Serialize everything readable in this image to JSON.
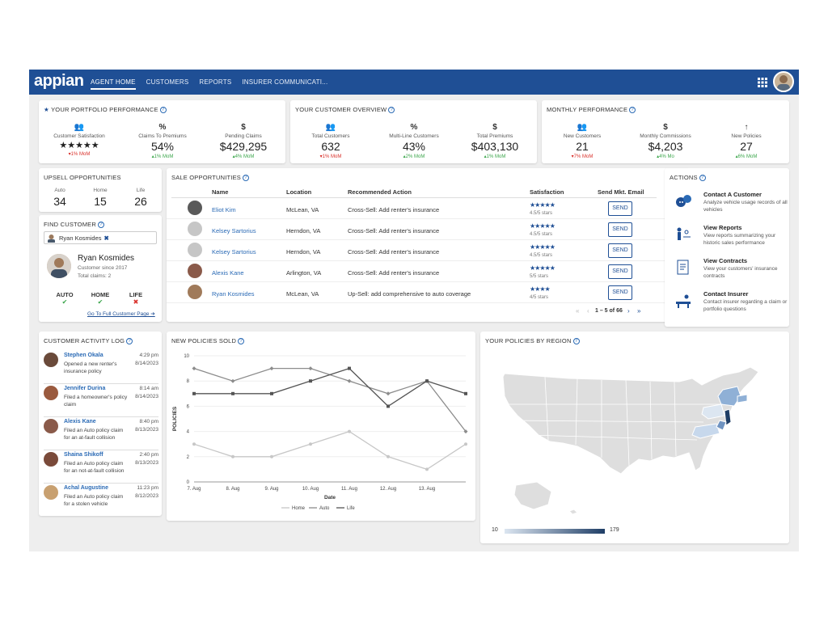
{
  "app": {
    "logo": "appian",
    "nav": [
      "AGENT HOME",
      "CUSTOMERS",
      "REPORTS",
      "INSURER COMMUNICATI..."
    ]
  },
  "portfolio": {
    "title": "YOUR PORTFOLIO PERFORMANCE",
    "stats": [
      {
        "icon": "people-icon",
        "label": "Customer Satisfaction",
        "value": "★★★★★",
        "change": "▾1% MoM",
        "dir": "down"
      },
      {
        "icon": "percent-icon",
        "label": "Claims To Premiums",
        "value": "54%",
        "change": "▴1% MoM",
        "dir": "up"
      },
      {
        "icon": "dollar-icon",
        "label": "Pending Claims",
        "value": "$429,295",
        "change": "▴4% MoM",
        "dir": "up"
      }
    ]
  },
  "overview": {
    "title": "YOUR CUSTOMER OVERVIEW",
    "stats": [
      {
        "label": "Total Customers",
        "value": "632",
        "change": "▾1% MoM",
        "dir": "down"
      },
      {
        "label": "Multi-Line Customers",
        "value": "43%",
        "change": "▴2% MoM",
        "dir": "up"
      },
      {
        "label": "Total Premiums",
        "value": "$403,130",
        "change": "▴1% MoM",
        "dir": "up"
      }
    ]
  },
  "monthly": {
    "title": "MONTHLY PERFORMANCE",
    "stats": [
      {
        "label": "New Customers",
        "value": "21",
        "change": "▾7% MoM",
        "dir": "down"
      },
      {
        "label": "Monthly Commissions",
        "value": "$4,203",
        "change": "▴4% Mo",
        "dir": "up"
      },
      {
        "label": "New Policies",
        "value": "27",
        "change": "▴6% MoM",
        "dir": "up"
      }
    ]
  },
  "upsell": {
    "title": "UPSELL OPPORTUNITIES",
    "items": [
      {
        "label": "Auto",
        "value": "34"
      },
      {
        "label": "Home",
        "value": "15"
      },
      {
        "label": "Life",
        "value": "26"
      }
    ]
  },
  "find": {
    "title": "FIND CUSTOMER",
    "chip": "Ryan Kosmides",
    "name": "Ryan Kosmides",
    "since": "Customer since 2017",
    "claims": "Total claims: 2",
    "lines": [
      {
        "label": "AUTO",
        "mark": "✔",
        "status": "yes"
      },
      {
        "label": "HOME",
        "mark": "✔",
        "status": "yes"
      },
      {
        "label": "LIFE",
        "mark": "✖",
        "status": "no"
      }
    ],
    "link": "Go To Full Customer Page ➔"
  },
  "sales": {
    "title": "SALE OPPORTUNITIES",
    "headers": [
      "Name",
      "Location",
      "Recommended Action",
      "Satisfaction",
      "Send Mkt. Email"
    ],
    "rows": [
      {
        "name": "Eliot Kim",
        "location": "McLean, VA",
        "action": "Cross-Sell: Add renter's insurance",
        "stars": "★★★★★",
        "score": "4.5/5 stars",
        "send": "SEND"
      },
      {
        "name": "Kelsey Sartorius",
        "location": "Herndon, VA",
        "action": "Cross-Sell: Add renter's insurance",
        "stars": "★★★★★",
        "score": "4.5/5 stars",
        "send": "SEND"
      },
      {
        "name": "Kelsey Sartorius",
        "location": "Herndon, VA",
        "action": "Cross-Sell: Add renter's insurance",
        "stars": "★★★★★",
        "score": "4.5/5 stars",
        "send": "SEND"
      },
      {
        "name": "Alexis Kane",
        "location": "Arlington, VA",
        "action": "Cross-Sell: Add renter's insurance",
        "stars": "★★★★★",
        "score": "5/5 stars",
        "send": "SEND"
      },
      {
        "name": "Ryan Kosmides",
        "location": "McLean, VA",
        "action": "Up-Sell: add comprehensive to auto coverage",
        "stars": "★★★★",
        "score": "4/5 stars",
        "send": "SEND"
      }
    ],
    "pager": "1 – 5 of 66"
  },
  "actions": {
    "title": "ACTIONS",
    "items": [
      {
        "title": "Contact A Customer",
        "desc": "Analyze vehicle usage records of all vehicles"
      },
      {
        "title": "View Reports",
        "desc": "View reports summarizing your historic sales performance"
      },
      {
        "title": "View Contracts",
        "desc": "View your customers' insurance contracts"
      },
      {
        "title": "Contact Insurer",
        "desc": "Contact insurer regarding a claim or portfolio questions"
      }
    ]
  },
  "activity": {
    "title": "CUSTOMER ACTIVITY LOG",
    "items": [
      {
        "name": "Stephen Okala",
        "text": "Opened a new renter's insurance policy",
        "time": "4:29 pm",
        "date": "8/14/2023"
      },
      {
        "name": "Jennifer Durina",
        "text": "Filed a homeowner's policy claim",
        "time": "8:14 am",
        "date": "8/14/2023"
      },
      {
        "name": "Alexis Kane",
        "text": "Filed an Auto policy claim for an at-fault collision",
        "time": "8:40 pm",
        "date": "8/13/2023"
      },
      {
        "name": "Shaina Shikoff",
        "text": "Filed an Auto policy claim for an not-at-fault collision",
        "time": "2:40 pm",
        "date": "8/13/2023"
      },
      {
        "name": "Achal Augustine",
        "text": "Filed an Auto policy claim for a stolen vehicle",
        "time": "11:23 pm",
        "date": "8/12/2023"
      }
    ]
  },
  "policies_chart": {
    "title": "NEW POLICIES SOLD"
  },
  "chart_data": {
    "type": "line",
    "x": [
      "7. Aug",
      "8. Aug",
      "9. Aug",
      "10. Aug",
      "11. Aug",
      "12. Aug",
      "13. Aug",
      "14. Aug"
    ],
    "x_ticks": [
      "7. Aug",
      "8. Aug",
      "9. Aug",
      "10. Aug",
      "11. Aug",
      "12. Aug",
      "13. Aug"
    ],
    "series": [
      {
        "name": "Home",
        "values": [
          3,
          2,
          2,
          3,
          4,
          2,
          1,
          3
        ],
        "color": "#c7c7c7",
        "marker": "circle"
      },
      {
        "name": "Auto",
        "values": [
          9,
          8,
          9,
          9,
          8,
          7,
          8,
          4
        ],
        "color": "#8c8c8c",
        "marker": "diamond"
      },
      {
        "name": "Life",
        "values": [
          7,
          7,
          7,
          8,
          9,
          6,
          8,
          7
        ],
        "color": "#555555",
        "marker": "square"
      }
    ],
    "ylim": [
      0,
      10
    ],
    "yticks": [
      0,
      2,
      4,
      6,
      8,
      10
    ],
    "xlabel": "Date",
    "ylabel": "POLICIES",
    "legend": "bottom"
  },
  "region": {
    "title": "YOUR POLICIES BY REGION",
    "scale_min": "10",
    "scale_max": "179",
    "colors": {
      "low": "#dce6f1",
      "mid": "#8fb0d6",
      "high": "#1f3e66"
    }
  }
}
